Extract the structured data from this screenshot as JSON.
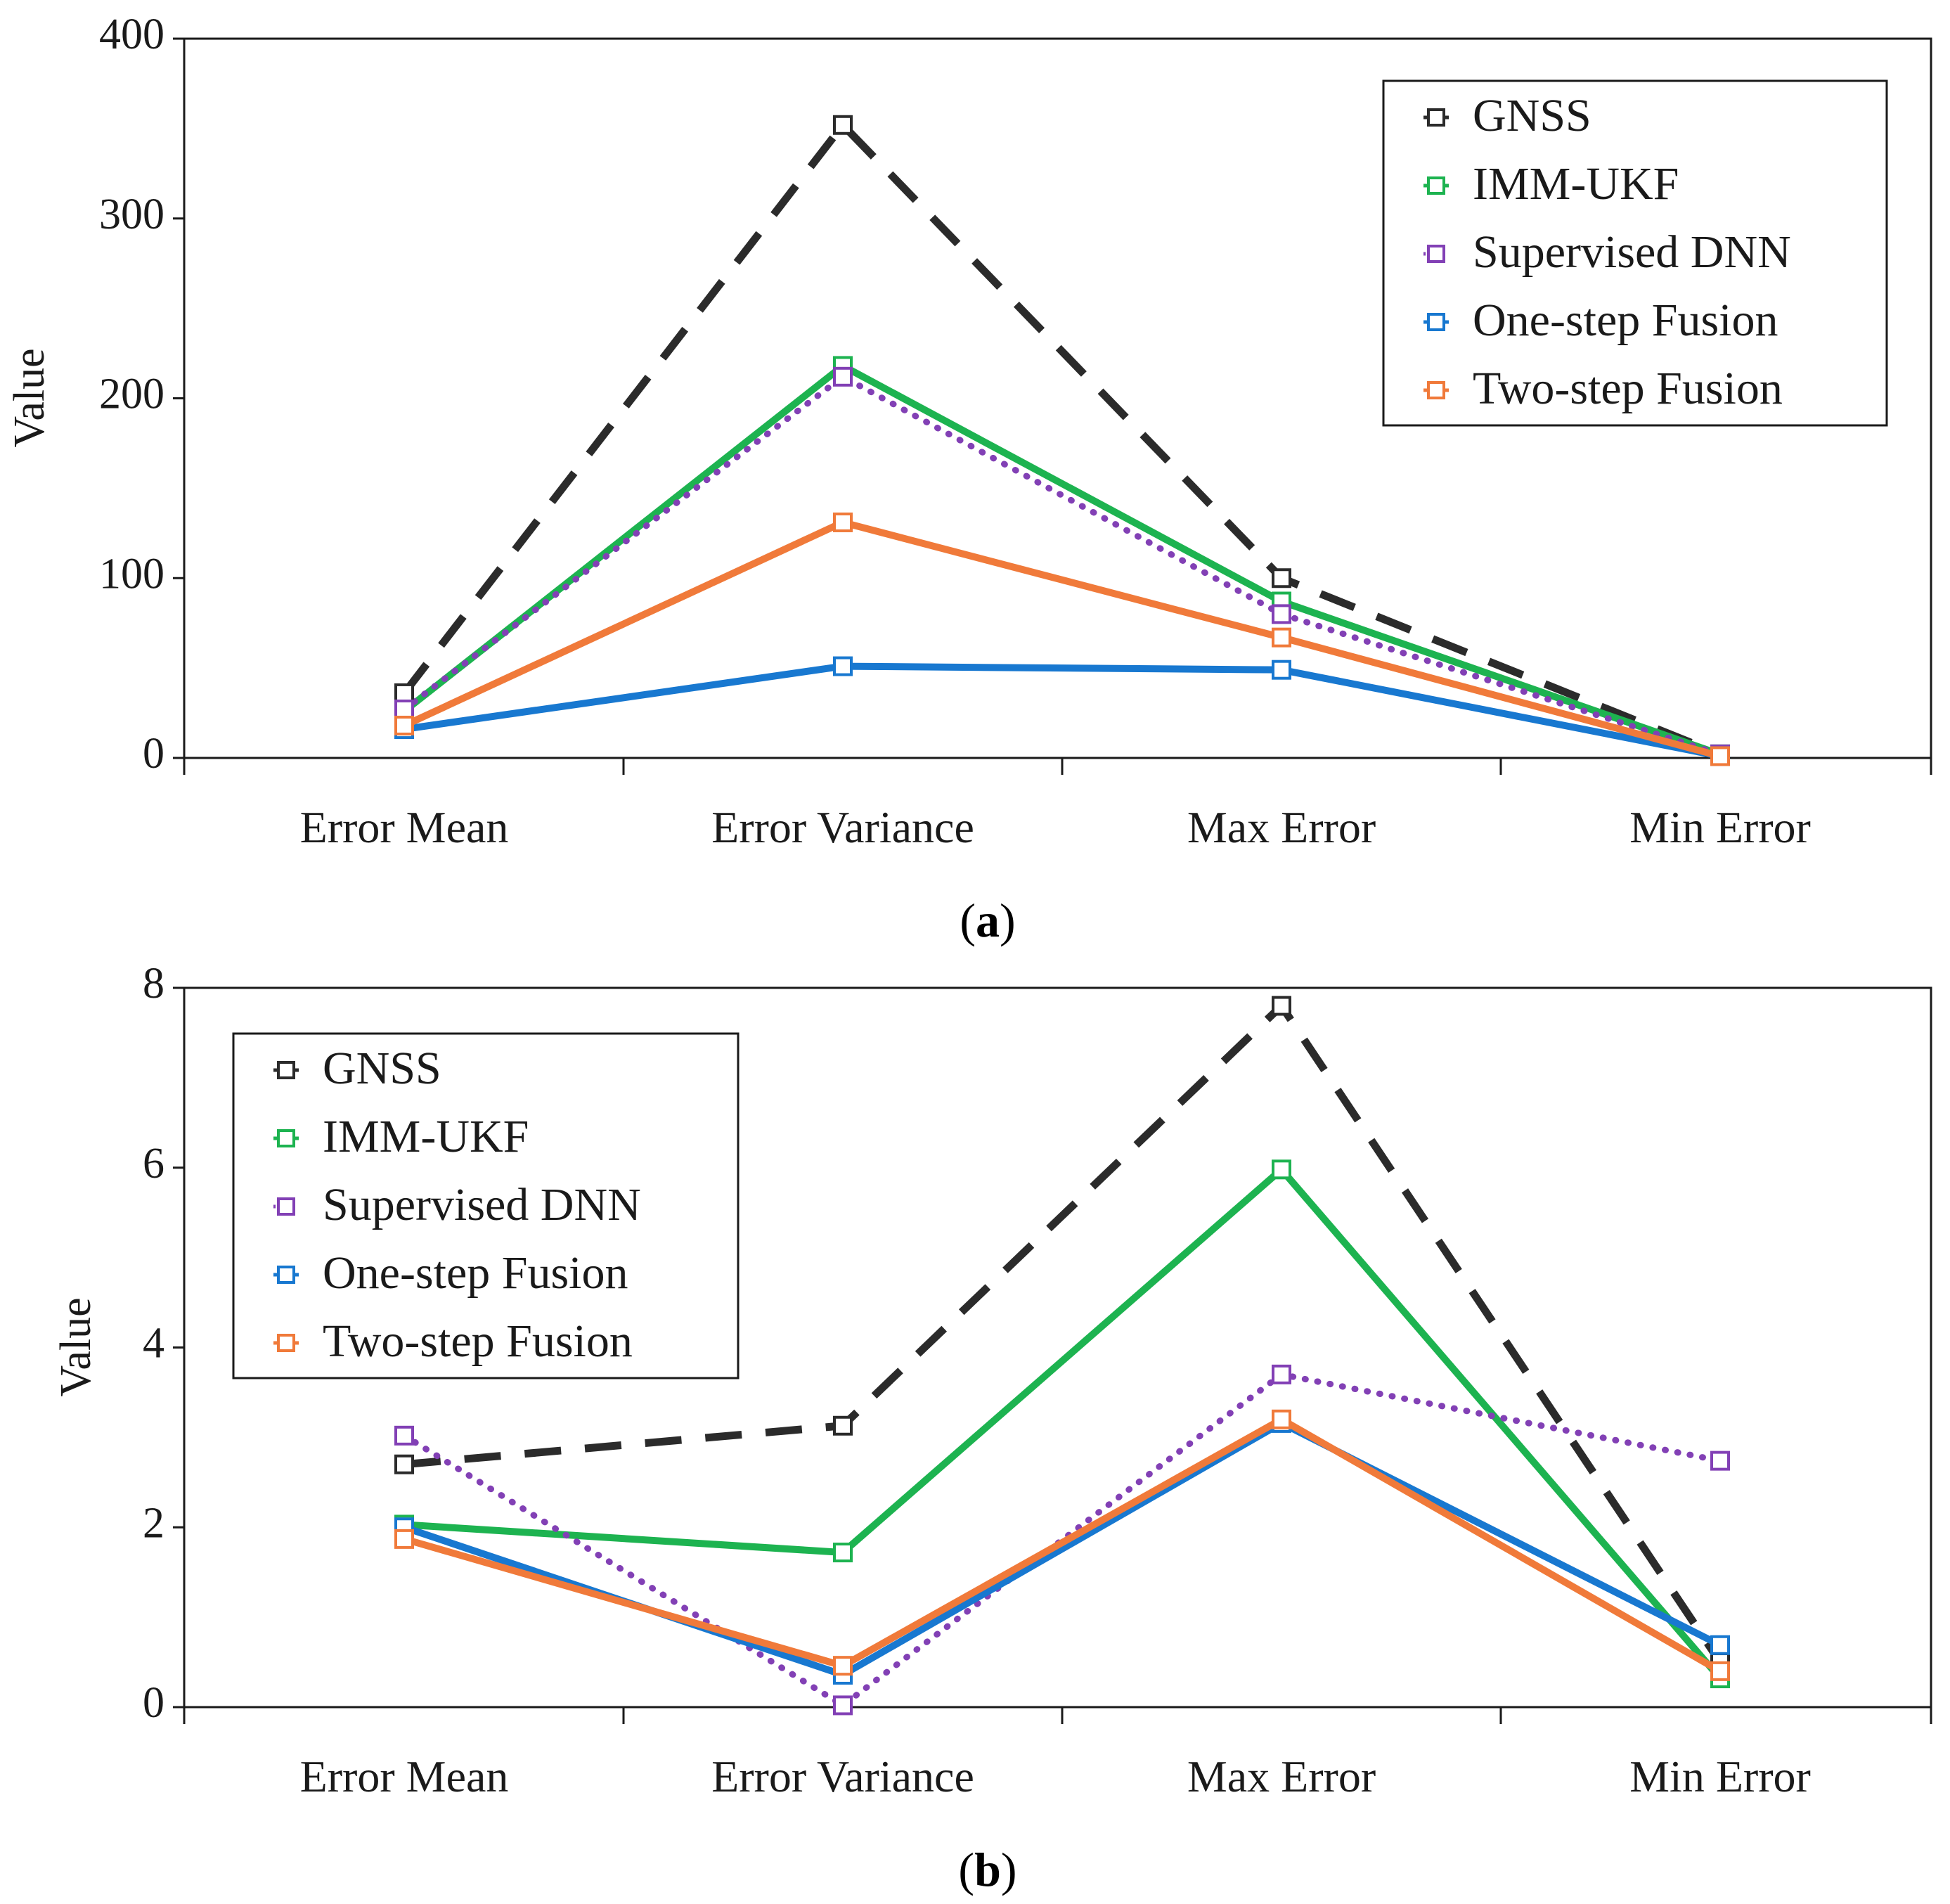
{
  "chart_data": [
    {
      "type": "line",
      "caption_letter": "a",
      "categories": [
        "Error Mean",
        "Error Variance",
        "Max Error",
        "Min Error"
      ],
      "ylabel": "Value",
      "ylim": [
        0,
        400
      ],
      "yticks": [
        "0",
        "100",
        "200",
        "300",
        "400"
      ],
      "legend_position": "top-right",
      "series": [
        {
          "name": "GNSS",
          "values": [
            36,
            352,
            100,
            2
          ],
          "color": "#2b2b2b",
          "style": "dashed"
        },
        {
          "name": "IMM-UKF",
          "values": [
            26,
            218,
            87,
            2
          ],
          "color": "#1db350",
          "style": "solid"
        },
        {
          "name": "Supervised DNN",
          "values": [
            27,
            212,
            80,
            2
          ],
          "color": "#8240b5",
          "style": "dotted"
        },
        {
          "name": "One-step Fusion",
          "values": [
            16,
            51,
            49,
            1
          ],
          "color": "#1878d0",
          "style": "solid"
        },
        {
          "name": "Two-step Fusion",
          "values": [
            18,
            131,
            67,
            1
          ],
          "color": "#f07a3a",
          "style": "solid"
        }
      ]
    },
    {
      "type": "line",
      "caption_letter": "b",
      "categories": [
        "Error Mean",
        "Error Variance",
        "Max Error",
        "Min Error"
      ],
      "ylabel": "Value",
      "ylim": [
        0,
        8
      ],
      "yticks": [
        "0",
        "2",
        "4",
        "6",
        "8"
      ],
      "legend_position": "top-left",
      "series": [
        {
          "name": "GNSS",
          "values": [
            2.7,
            3.13,
            7.8,
            0.5
          ],
          "color": "#2b2b2b",
          "style": "dashed"
        },
        {
          "name": "IMM-UKF",
          "values": [
            2.03,
            1.72,
            5.98,
            0.32
          ],
          "color": "#1db350",
          "style": "solid"
        },
        {
          "name": "Supervised DNN",
          "values": [
            3.02,
            0.02,
            3.7,
            2.74
          ],
          "color": "#8240b5",
          "style": "dotted"
        },
        {
          "name": "One-step Fusion",
          "values": [
            2.0,
            0.36,
            3.16,
            0.69
          ],
          "color": "#1878d0",
          "style": "solid"
        },
        {
          "name": "Two-step Fusion",
          "values": [
            1.87,
            0.46,
            3.2,
            0.4
          ],
          "color": "#f07a3a",
          "style": "solid"
        }
      ]
    }
  ]
}
